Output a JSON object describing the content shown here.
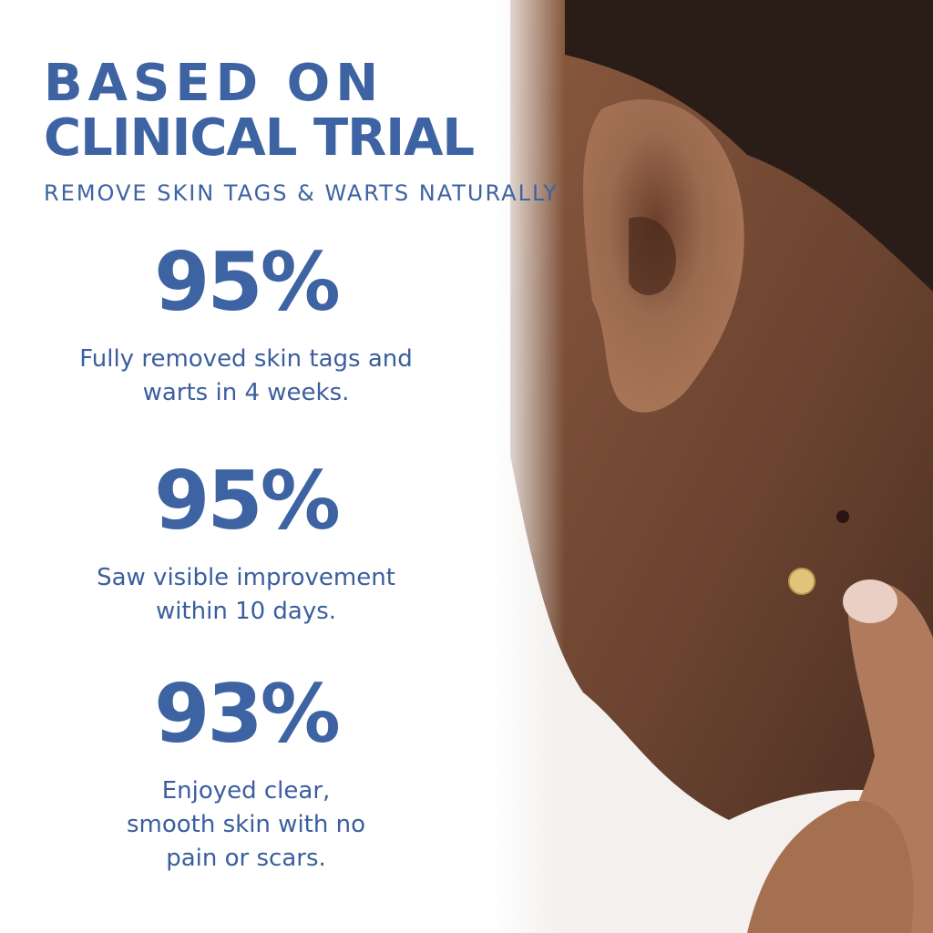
{
  "header": {
    "title_lines": [
      "BASED ON",
      "CLINICAL TRIAL"
    ],
    "subtitle": "REMOVE SKIN TAGS & WARTS NATURALLY"
  },
  "stats": [
    {
      "value": "95%",
      "lines": [
        "Fully removed skin tags and",
        "warts in 4 weeks."
      ]
    },
    {
      "value": "95%",
      "lines": [
        "Saw visible improvement",
        "within 10 days."
      ]
    },
    {
      "value": "93%",
      "lines": [
        "Enjoyed clear,",
        "smooth skin with no",
        "pain or scars."
      ]
    }
  ]
}
